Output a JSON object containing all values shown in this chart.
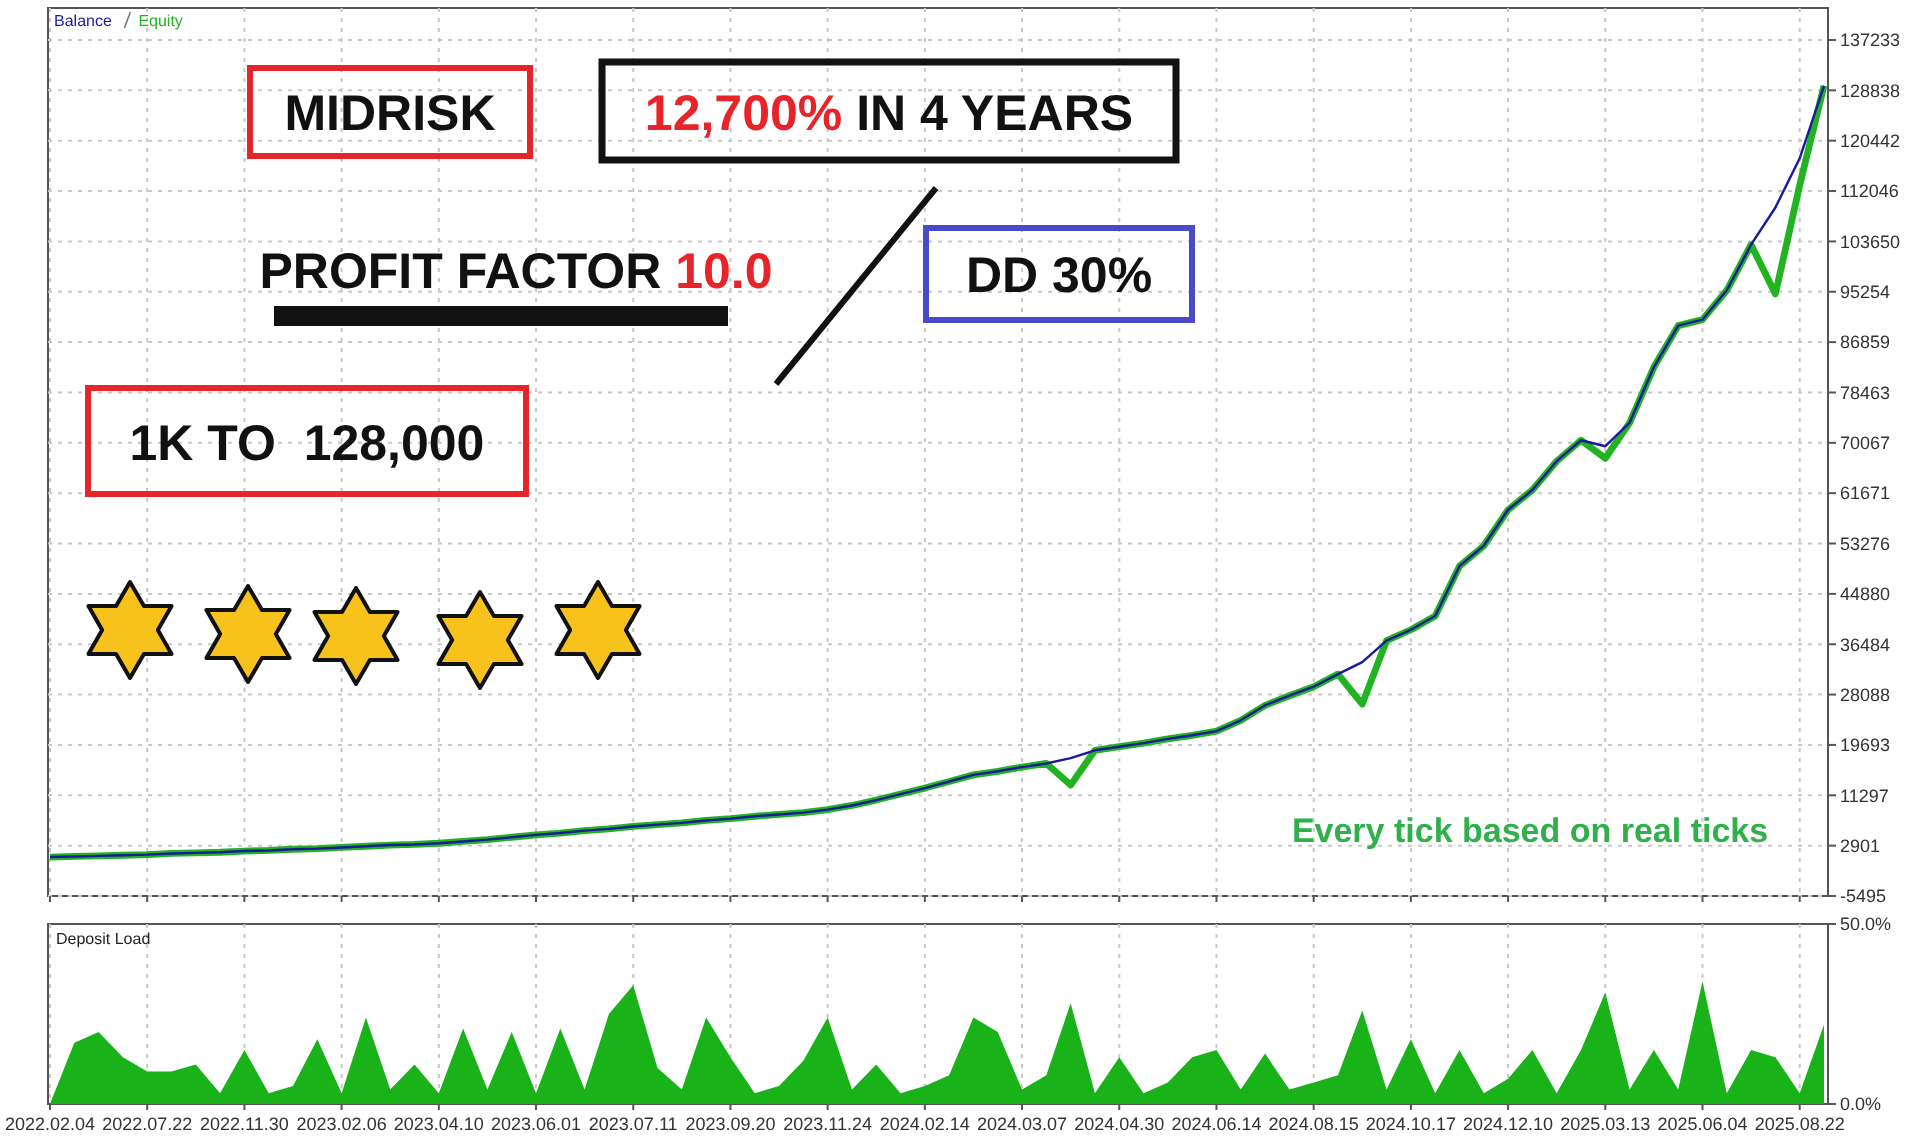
{
  "chart_data": [
    {
      "type": "line",
      "legend": "top left",
      "grid": true,
      "tick_labels": "y",
      "annotations": [
        "MIDRISK",
        "12,700%",
        "IN 4 YEARS",
        "PROFIT FACTOR",
        "10.0",
        "DD 30%",
        "1K TO  128,000",
        "Every tick based on real ticks"
      ],
      "categories": [
        "2022.02.04",
        null,
        null,
        null,
        "2022.07.22",
        null,
        null,
        null,
        "2022.11.30",
        null,
        null,
        null,
        "2023.02.06",
        null,
        null,
        null,
        "2023.04.10",
        null,
        null,
        null,
        "2023.06.01",
        null,
        null,
        null,
        "2023.07.11",
        null,
        null,
        null,
        "2023.09.20",
        null,
        null,
        null,
        "2023.11.24",
        null,
        null,
        null,
        "2024.02.14",
        null,
        null,
        null,
        "2024.03.07",
        null,
        null,
        null,
        "2024.04.30",
        null,
        null,
        null,
        "2024.06.14",
        null,
        null,
        null,
        "2024.08.15",
        null,
        null,
        null,
        "2024.10.17",
        null,
        null,
        null,
        "2024.12.10",
        null,
        null,
        null,
        "2025.03.13",
        null,
        null,
        null,
        "2025.06.04",
        null,
        null,
        null,
        "2025.08.22",
        null
      ],
      "ylim": [
        -5495,
        142567
      ],
      "yticks": [
        -5495,
        2901,
        11297,
        19693,
        28088,
        36484,
        44880,
        53276,
        61671,
        70067,
        78463,
        86859,
        95254,
        103650,
        112046,
        120442,
        128838,
        137233
      ],
      "series": [
        {
          "name": "Equity",
          "color": "#22b322",
          "values": [
            1000,
            1100,
            1200,
            1300,
            1400,
            1600,
            1700,
            1800,
            2000,
            2100,
            2300,
            2400,
            2600,
            2800,
            3000,
            3100,
            3300,
            3600,
            3900,
            4300,
            4700,
            5000,
            5400,
            5700,
            6100,
            6400,
            6700,
            7100,
            7400,
            7800,
            8100,
            8400,
            8900,
            9600,
            10500,
            11500,
            12500,
            13600,
            14700,
            15300,
            16000,
            16600,
            13000,
            18800,
            19400,
            20000,
            20700,
            21300,
            22000,
            23800,
            26300,
            27900,
            29400,
            31500,
            26500,
            37100,
            38900,
            41200,
            49500,
            52900,
            58900,
            62200,
            67000,
            70500,
            67500,
            73400,
            82700,
            89600,
            90600,
            95500,
            103100,
            94900,
            113000,
            129600
          ]
        },
        {
          "name": "Balance",
          "color": "#1a1a9c",
          "values": [
            1000,
            1100,
            1200,
            1300,
            1400,
            1600,
            1700,
            1800,
            2000,
            2100,
            2300,
            2400,
            2600,
            2800,
            3000,
            3100,
            3300,
            3600,
            3900,
            4300,
            4700,
            5000,
            5400,
            5700,
            6100,
            6400,
            6700,
            7100,
            7400,
            7800,
            8100,
            8400,
            8900,
            9600,
            10500,
            11500,
            12500,
            13600,
            14700,
            15300,
            16000,
            16600,
            17500,
            18800,
            19400,
            20000,
            20700,
            21300,
            22000,
            23800,
            26300,
            27900,
            29400,
            31500,
            33500,
            37100,
            38900,
            41200,
            49500,
            52900,
            58900,
            62200,
            67000,
            70500,
            69500,
            73400,
            82700,
            89600,
            90600,
            95500,
            103100,
            109300,
            117500,
            129600
          ]
        }
      ]
    },
    {
      "type": "area",
      "title": "Deposit Load",
      "grid": "x",
      "categories": [
        "2022.02.04",
        null,
        null,
        null,
        "2022.07.22",
        null,
        null,
        null,
        "2022.11.30",
        null,
        null,
        null,
        "2023.02.06",
        null,
        null,
        null,
        "2023.04.10",
        null,
        null,
        null,
        "2023.06.01",
        null,
        null,
        null,
        "2023.07.11",
        null,
        null,
        null,
        "2023.09.20",
        null,
        null,
        null,
        "2023.11.24",
        null,
        null,
        null,
        "2024.02.14",
        null,
        null,
        null,
        "2024.03.07",
        null,
        null,
        null,
        "2024.04.30",
        null,
        null,
        null,
        "2024.06.14",
        null,
        null,
        null,
        "2024.08.15",
        null,
        null,
        null,
        "2024.10.17",
        null,
        null,
        null,
        "2024.12.10",
        null,
        null,
        null,
        "2025.03.13",
        null,
        null,
        null,
        "2025.06.04",
        null,
        null,
        null,
        "2025.08.22",
        null
      ],
      "ylim": [
        0,
        50
      ],
      "yticks": [
        {
          "value": 0,
          "label": "0.0%"
        },
        {
          "value": 50,
          "label": "50.0%"
        }
      ],
      "series": [
        {
          "color": "#19b219",
          "values": [
            0,
            17,
            20,
            13,
            9,
            9,
            11,
            3,
            15,
            3,
            5,
            18,
            3,
            24,
            4,
            11,
            3,
            21,
            4,
            20,
            3,
            21,
            4,
            25,
            33,
            10,
            4,
            24,
            13,
            3,
            5,
            12,
            24,
            4,
            11,
            3,
            5,
            8,
            24,
            20,
            4,
            8,
            28,
            3,
            13,
            3,
            6,
            13,
            15,
            4,
            14,
            4,
            6,
            8,
            26,
            4,
            18,
            3,
            15,
            3,
            7,
            15,
            3,
            15,
            31,
            4,
            15,
            4,
            34,
            3,
            15,
            13,
            3,
            22
          ]
        }
      ]
    }
  ]
}
